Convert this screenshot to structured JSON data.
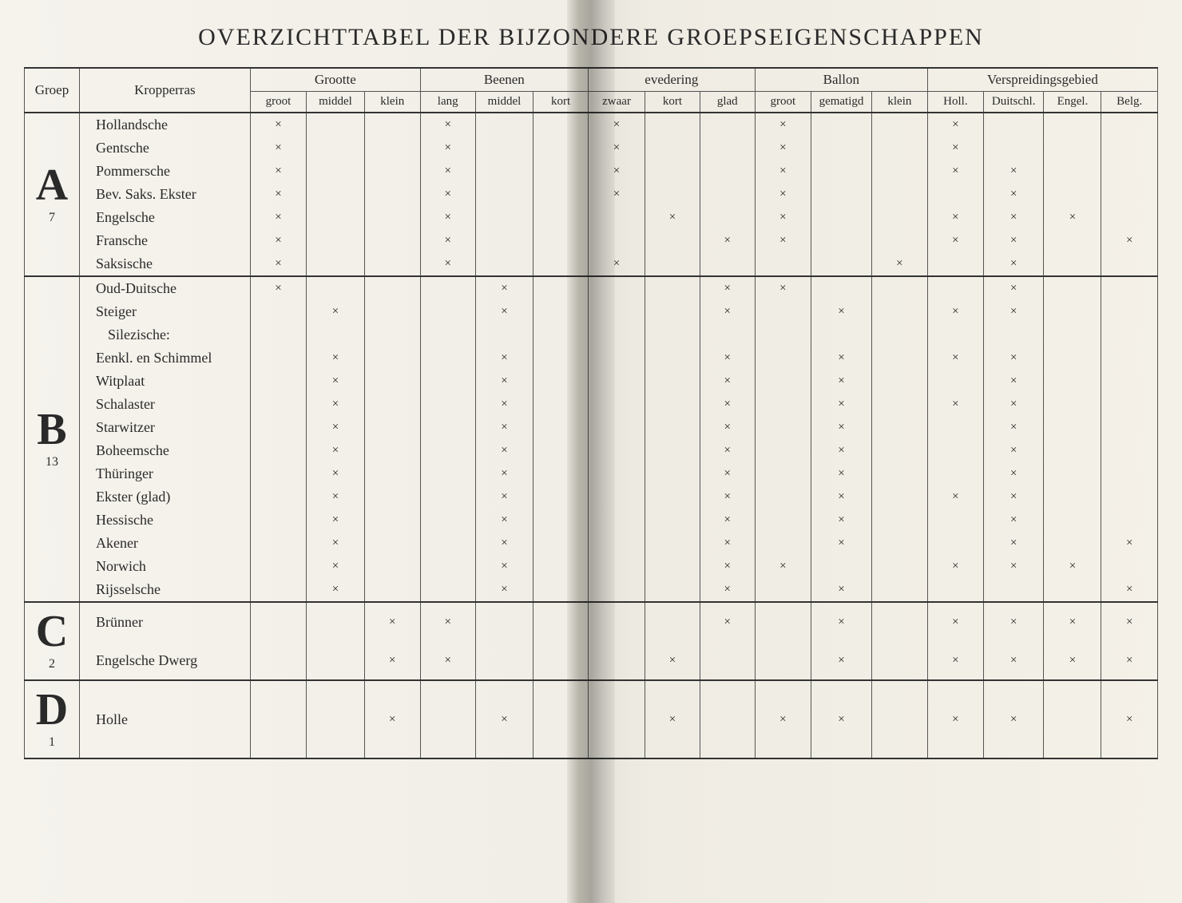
{
  "title": "OVERZICHTTABEL DER BIJZONDERE GROEPSEIGENSCHAPPEN",
  "headers": {
    "groep": "Groep",
    "kropperras": "Kropperras",
    "grootte": "Grootte",
    "beenen": "Beenen",
    "vedering": "evedering",
    "ballon": "Ballon",
    "verspreiding": "Verspreidingsgebied",
    "sub": {
      "groot": "groot",
      "middel": "middel",
      "klein": "klein",
      "lang": "lang",
      "middel2": "middel",
      "kort": "kort",
      "zwaar": "zwaar",
      "kort2": "kort",
      "glad": "glad",
      "groot2": "groot",
      "gematigd": "gematigd",
      "klein2": "klein",
      "holl": "Holl.",
      "duitschl": "Duitschl.",
      "engel": "Engel.",
      "belg": "Belg."
    }
  },
  "mark": "×",
  "groups": [
    {
      "label": "A",
      "num": "7",
      "rows": [
        {
          "name": "Hollandsche",
          "cells": [
            "×",
            "",
            "",
            "×",
            "",
            "",
            "×",
            "",
            "",
            "×",
            "",
            "",
            "×",
            "",
            "",
            ""
          ]
        },
        {
          "name": "Gentsche",
          "cells": [
            "×",
            "",
            "",
            "×",
            "",
            "",
            "×",
            "",
            "",
            "×",
            "",
            "",
            "×",
            "",
            "",
            ""
          ]
        },
        {
          "name": "Pommersche",
          "cells": [
            "×",
            "",
            "",
            "×",
            "",
            "",
            "×",
            "",
            "",
            "×",
            "",
            "",
            "×",
            "×",
            "",
            ""
          ]
        },
        {
          "name": "Bev. Saks. Ekster",
          "cells": [
            "×",
            "",
            "",
            "×",
            "",
            "",
            "×",
            "",
            "",
            "×",
            "",
            "",
            "",
            "×",
            "",
            ""
          ]
        },
        {
          "name": "Engelsche",
          "cells": [
            "×",
            "",
            "",
            "×",
            "",
            "",
            "",
            "×",
            "",
            "×",
            "",
            "",
            "×",
            "×",
            "×",
            ""
          ]
        },
        {
          "name": "Fransche",
          "cells": [
            "×",
            "",
            "",
            "×",
            "",
            "",
            "",
            "",
            "×",
            "×",
            "",
            "",
            "×",
            "×",
            "",
            "×"
          ]
        },
        {
          "name": "Saksische",
          "cells": [
            "×",
            "",
            "",
            "×",
            "",
            "",
            "×",
            "",
            "",
            "",
            "",
            "×",
            "",
            "×",
            "",
            ""
          ]
        }
      ]
    },
    {
      "label": "B",
      "num": "13",
      "rows": [
        {
          "name": "Oud-Duitsche",
          "cells": [
            "×",
            "",
            "",
            "",
            "×",
            "",
            "",
            "",
            "×",
            "×",
            "",
            "",
            "",
            "×",
            "",
            ""
          ]
        },
        {
          "name": "Steiger",
          "cells": [
            "",
            "×",
            "",
            "",
            "×",
            "",
            "",
            "",
            "×",
            "",
            "×",
            "",
            "×",
            "×",
            "",
            ""
          ]
        },
        {
          "name": "Silezische:",
          "indent": true,
          "cells": [
            "",
            "",
            "",
            "",
            "",
            "",
            "",
            "",
            "",
            "",
            "",
            "",
            "",
            "",
            "",
            ""
          ]
        },
        {
          "name": "Eenkl. en Schimmel",
          "cells": [
            "",
            "×",
            "",
            "",
            "×",
            "",
            "",
            "",
            "×",
            "",
            "×",
            "",
            "×",
            "×",
            "",
            ""
          ]
        },
        {
          "name": "Witplaat",
          "cells": [
            "",
            "×",
            "",
            "",
            "×",
            "",
            "",
            "",
            "×",
            "",
            "×",
            "",
            "",
            "×",
            "",
            ""
          ]
        },
        {
          "name": "Schalaster",
          "cells": [
            "",
            "×",
            "",
            "",
            "×",
            "",
            "",
            "",
            "×",
            "",
            "×",
            "",
            "×",
            "×",
            "",
            ""
          ]
        },
        {
          "name": "Starwitzer",
          "cells": [
            "",
            "×",
            "",
            "",
            "×",
            "",
            "",
            "",
            "×",
            "",
            "×",
            "",
            "",
            "×",
            "",
            ""
          ]
        },
        {
          "name": "Boheemsche",
          "cells": [
            "",
            "×",
            "",
            "",
            "×",
            "",
            "",
            "",
            "×",
            "",
            "×",
            "",
            "",
            "×",
            "",
            ""
          ]
        },
        {
          "name": "Thüringer",
          "cells": [
            "",
            "×",
            "",
            "",
            "×",
            "",
            "",
            "",
            "×",
            "",
            "×",
            "",
            "",
            "×",
            "",
            ""
          ]
        },
        {
          "name": "Ekster (glad)",
          "cells": [
            "",
            "×",
            "",
            "",
            "×",
            "",
            "",
            "",
            "×",
            "",
            "×",
            "",
            "×",
            "×",
            "",
            ""
          ]
        },
        {
          "name": "Hessische",
          "cells": [
            "",
            "×",
            "",
            "",
            "×",
            "",
            "",
            "",
            "×",
            "",
            "×",
            "",
            "",
            "×",
            "",
            ""
          ]
        },
        {
          "name": "Akener",
          "cells": [
            "",
            "×",
            "",
            "",
            "×",
            "",
            "",
            "",
            "×",
            "",
            "×",
            "",
            "",
            "×",
            "",
            "×"
          ]
        },
        {
          "name": "Norwich",
          "cells": [
            "",
            "×",
            "",
            "",
            "×",
            "",
            "",
            "",
            "×",
            "×",
            "",
            "",
            "×",
            "×",
            "×",
            ""
          ]
        },
        {
          "name": "Rijsselsche",
          "cells": [
            "",
            "×",
            "",
            "",
            "×",
            "",
            "",
            "",
            "×",
            "",
            "×",
            "",
            "",
            "",
            "",
            "×"
          ]
        }
      ]
    },
    {
      "label": "C",
      "num": "2",
      "rows": [
        {
          "name": "Brünner",
          "cells": [
            "",
            "",
            "×",
            "×",
            "",
            "",
            "",
            "",
            "×",
            "",
            "×",
            "",
            "×",
            "×",
            "×",
            "×"
          ]
        },
        {
          "name": "Engelsche Dwerg",
          "cells": [
            "",
            "",
            "×",
            "×",
            "",
            "",
            "",
            "×",
            "",
            "",
            "×",
            "",
            "×",
            "×",
            "×",
            "×"
          ]
        }
      ]
    },
    {
      "label": "D",
      "num": "1",
      "rows": [
        {
          "name": "Holle",
          "cells": [
            "",
            "",
            "×",
            "",
            "×",
            "",
            "",
            "×",
            "",
            "×",
            "×",
            "",
            "×",
            "×",
            "",
            "×"
          ]
        }
      ]
    }
  ]
}
